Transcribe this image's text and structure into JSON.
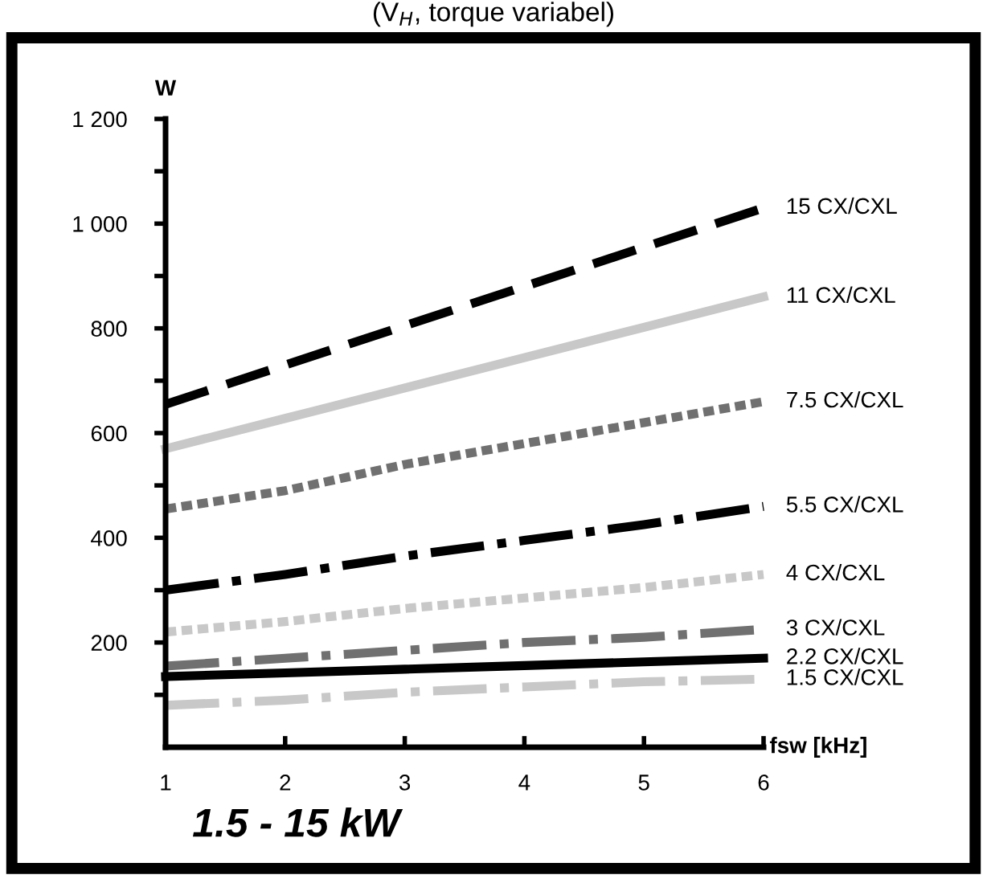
{
  "chart_data": {
    "type": "line",
    "title": "1.5 - 15 kW",
    "subtitle": "(V$_{H}$, torque variabel)",
    "xlabel": "fsw [kHz]",
    "ylabel": "W",
    "x": [
      1,
      2,
      3,
      4,
      5,
      6
    ],
    "xlim": [
      1,
      6
    ],
    "xticks": [
      1,
      2,
      3,
      4,
      5,
      6
    ],
    "ylim": [
      0,
      1200
    ],
    "yticks": [
      {
        "value": 100,
        "label": null
      },
      {
        "value": 200,
        "label": "200"
      },
      {
        "value": 300,
        "label": null
      },
      {
        "value": 400,
        "label": "400"
      },
      {
        "value": 500,
        "label": null
      },
      {
        "value": 600,
        "label": "600"
      },
      {
        "value": 700,
        "label": null
      },
      {
        "value": 800,
        "label": "800"
      },
      {
        "value": 900,
        "label": null
      },
      {
        "value": 1000,
        "label": "1 000"
      },
      {
        "value": 1100,
        "label": null
      },
      {
        "value": 1200,
        "label": "1 200"
      }
    ],
    "grid": false,
    "legend": false,
    "marker": "none",
    "series": [
      {
        "name": "15 CX/CXL",
        "color": "#000000",
        "line_style": "dashed",
        "values": [
          655,
          730,
          805,
          880,
          955,
          1030
        ]
      },
      {
        "name": "11 CX/CXL",
        "color": "#c8c8c8",
        "line_style": "solid",
        "values": [
          570,
          628,
          686,
          744,
          802,
          860
        ]
      },
      {
        "name": "7.5 CX/CXL",
        "color": "#707070",
        "line_style": "dotted",
        "values": [
          455,
          490,
          540,
          580,
          620,
          660
        ]
      },
      {
        "name": "5.5 CX/CXL",
        "color": "#000000",
        "line_style": "dashdot",
        "values": [
          300,
          330,
          365,
          395,
          425,
          460
        ]
      },
      {
        "name": "4 CX/CXL",
        "color": "#c8c8c8",
        "line_style": "dotted",
        "values": [
          220,
          240,
          265,
          285,
          305,
          330
        ]
      },
      {
        "name": "3 CX/CXL",
        "color": "#707070",
        "line_style": "dashdot",
        "values": [
          155,
          170,
          185,
          200,
          210,
          225
        ]
      },
      {
        "name": "2.2 CX/CXL",
        "color": "#000000",
        "line_style": "solid",
        "values": [
          135,
          142,
          149,
          156,
          163,
          170
        ]
      },
      {
        "name": "1.5 CX/CXL",
        "color": "#c8c8c8",
        "line_style": "dashdot",
        "values": [
          80,
          90,
          105,
          115,
          125,
          130
        ]
      }
    ]
  }
}
